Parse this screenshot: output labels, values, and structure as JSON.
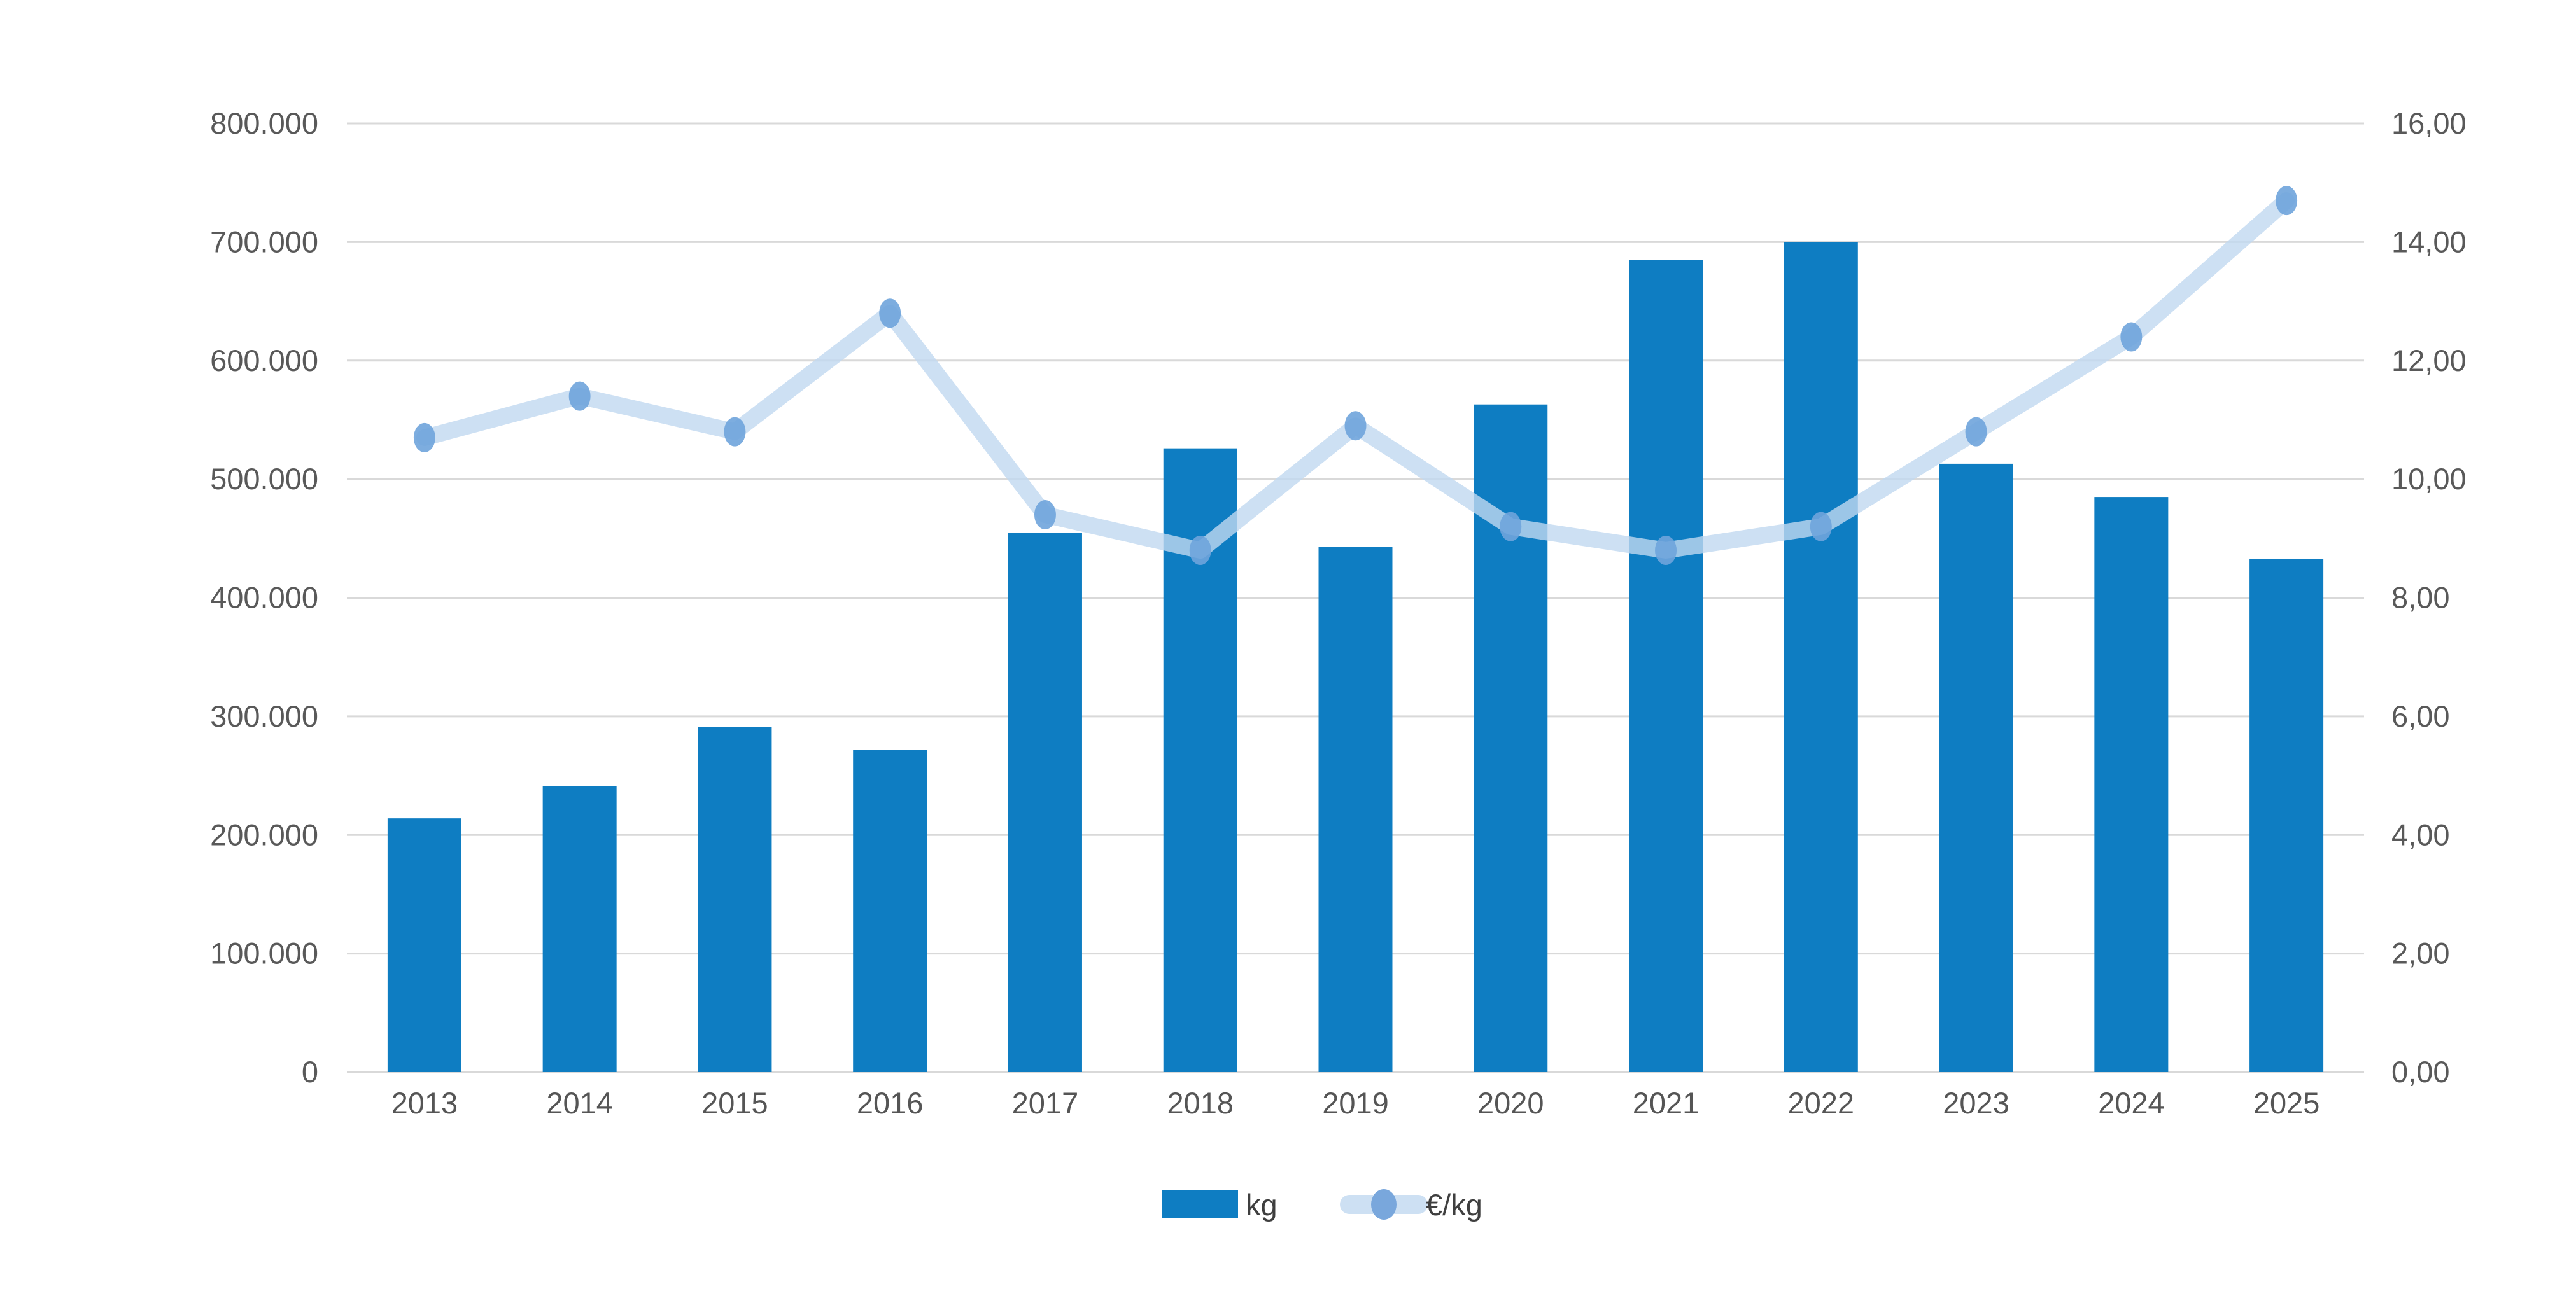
{
  "page": {
    "background": "#ffffff"
  },
  "legend": {
    "items": [
      {
        "label": "kg",
        "marker": "bar-swatch"
      },
      {
        "label": "€/kg",
        "marker": "line-dot-swatch"
      }
    ]
  },
  "chart_data": {
    "type": "bar",
    "subtype": "combo-bar-line-dual-axis",
    "title": "",
    "categories": [
      "2013",
      "2014",
      "2015",
      "2016",
      "2017",
      "2018",
      "2019",
      "2020",
      "2021",
      "2022",
      "2023",
      "2024",
      "2025"
    ],
    "series": [
      {
        "name": "kg",
        "chart": "bar",
        "axis": "left",
        "color": "#0E7DC2",
        "values": [
          214000,
          241000,
          291000,
          272000,
          455000,
          526000,
          443000,
          563000,
          685000,
          700000,
          513000,
          485000,
          433000
        ]
      },
      {
        "name": "€/kg",
        "chart": "line",
        "axis": "right",
        "line_color": "#C0D8F0",
        "line_opacity": 0.8,
        "marker_color": "#6FA4DC",
        "marker_opacity": 0.9,
        "values": [
          10.7,
          11.4,
          10.8,
          12.8,
          9.4,
          8.8,
          10.9,
          9.2,
          8.8,
          9.2,
          10.8,
          12.4,
          14.7
        ]
      }
    ],
    "left_axis": {
      "min": 0,
      "max": 800000,
      "step": 100000,
      "tick_labels": [
        "0",
        "100.000",
        "200.000",
        "300.000",
        "400.000",
        "500.000",
        "600.000",
        "700.000",
        "800.000"
      ]
    },
    "right_axis": {
      "min": 0,
      "max": 16,
      "step": 2,
      "tick_labels": [
        "0,00",
        "2,00",
        "4,00",
        "6,00",
        "8,00",
        "10,00",
        "12,00",
        "14,00",
        "16,00"
      ]
    },
    "grid": true,
    "gridline_color": "#D9D9D9",
    "tick_text_color": "#595959",
    "legend_position": "bottom",
    "xlabel": "",
    "ylabel": ""
  }
}
